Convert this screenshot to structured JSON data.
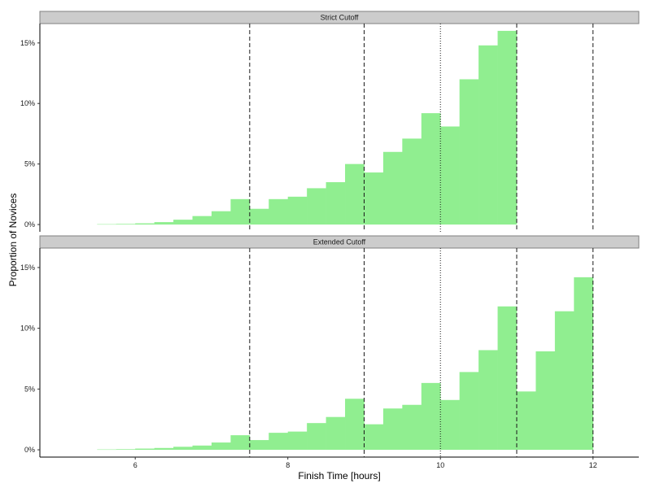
{
  "chart_data": {
    "type": "bar",
    "xlabel": "Finish Time [hours]",
    "ylabel": "Proportion of Novices",
    "xlim": [
      4.75,
      12.6
    ],
    "ylim": [
      -0.6,
      16.6
    ],
    "x_ticks": [
      6,
      8,
      10,
      12
    ],
    "y_ticks": [
      0,
      5,
      10,
      15
    ],
    "y_tick_suffix": "%",
    "bin_width": 0.25,
    "bar_color": "#90ee90",
    "grid": false,
    "panels": [
      {
        "title": "Strict Cutoff",
        "bins_start": [
          5.5,
          5.75,
          6.0,
          6.25,
          6.5,
          6.75,
          7.0,
          7.25,
          7.5,
          7.75,
          8.0,
          8.25,
          8.5,
          8.75,
          9.0,
          9.25,
          9.5,
          9.75,
          10.0,
          10.25,
          10.5,
          10.75
        ],
        "values": [
          0.03,
          0.05,
          0.1,
          0.2,
          0.4,
          0.7,
          1.1,
          2.1,
          1.3,
          2.1,
          2.3,
          3.0,
          3.5,
          5.0,
          4.3,
          6.0,
          7.1,
          9.2,
          8.1,
          12.0,
          14.8,
          16.0
        ],
        "vlines_dashed": [
          7.5,
          9.0,
          11.0,
          12.0
        ],
        "vlines_dotted": [
          10.0
        ]
      },
      {
        "title": "Extended Cutoff",
        "bins_start": [
          5.5,
          5.75,
          6.0,
          6.25,
          6.5,
          6.75,
          7.0,
          7.25,
          7.5,
          7.75,
          8.0,
          8.25,
          8.5,
          8.75,
          9.0,
          9.25,
          9.5,
          9.75,
          10.0,
          10.25,
          10.5,
          10.75,
          11.0,
          11.25,
          11.5,
          11.75
        ],
        "values": [
          0.03,
          0.05,
          0.1,
          0.15,
          0.25,
          0.35,
          0.6,
          1.2,
          0.8,
          1.4,
          1.5,
          2.2,
          2.7,
          4.2,
          2.1,
          3.4,
          3.7,
          5.5,
          4.1,
          6.4,
          8.2,
          11.8,
          4.8,
          8.1,
          11.4,
          14.2
        ],
        "vlines_dashed": [
          7.5,
          9.0,
          11.0,
          12.0
        ],
        "vlines_dotted": [
          10.0
        ]
      }
    ]
  }
}
